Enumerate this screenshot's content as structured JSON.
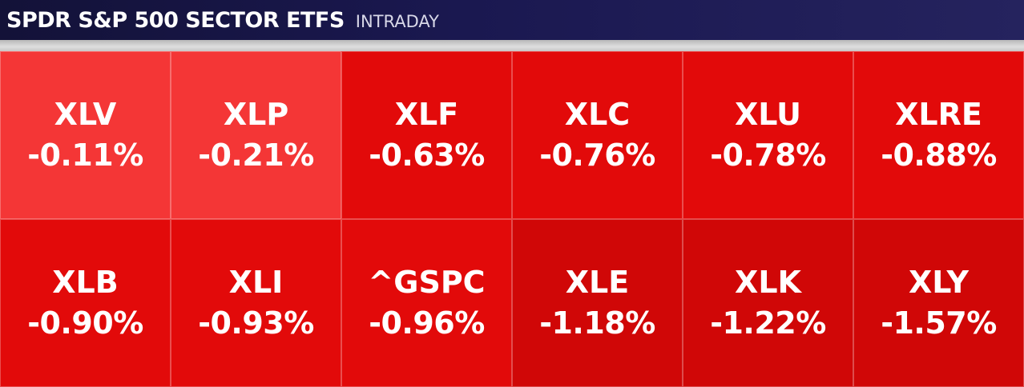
{
  "header": {
    "title": "SPDR S&P 500 SECTOR ETFS",
    "subtitle": "INTRADAY"
  },
  "colors": {
    "light": "#f43636",
    "medium": "#e20a0a",
    "dark": "#d00707"
  },
  "chart_data": {
    "type": "heatmap",
    "title": "SPDR S&P 500 SECTOR ETFS",
    "subtitle": "INTRADAY",
    "columns": 6,
    "rows": 2,
    "cells": [
      {
        "ticker": "XLV",
        "change": "-0.11%",
        "value": -0.11,
        "shade": "light"
      },
      {
        "ticker": "XLP",
        "change": "-0.21%",
        "value": -0.21,
        "shade": "light"
      },
      {
        "ticker": "XLF",
        "change": "-0.63%",
        "value": -0.63,
        "shade": "medium"
      },
      {
        "ticker": "XLC",
        "change": "-0.76%",
        "value": -0.76,
        "shade": "medium"
      },
      {
        "ticker": "XLU",
        "change": "-0.78%",
        "value": -0.78,
        "shade": "medium"
      },
      {
        "ticker": "XLRE",
        "change": "-0.88%",
        "value": -0.88,
        "shade": "medium"
      },
      {
        "ticker": "XLB",
        "change": "-0.90%",
        "value": -0.9,
        "shade": "medium"
      },
      {
        "ticker": "XLI",
        "change": "-0.93%",
        "value": -0.93,
        "shade": "medium"
      },
      {
        "ticker": "^GSPC",
        "change": "-0.96%",
        "value": -0.96,
        "shade": "medium"
      },
      {
        "ticker": "XLE",
        "change": "-1.18%",
        "value": -1.18,
        "shade": "dark"
      },
      {
        "ticker": "XLK",
        "change": "-1.22%",
        "value": -1.22,
        "shade": "dark"
      },
      {
        "ticker": "XLY",
        "change": "-1.57%",
        "value": -1.57,
        "shade": "dark"
      }
    ]
  }
}
